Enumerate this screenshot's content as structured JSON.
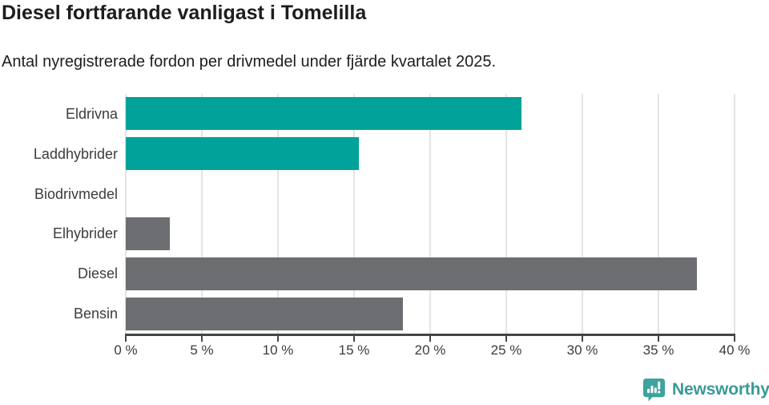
{
  "header": {
    "title": "Diesel fortfarande vanligast i Tomelilla",
    "subtitle": "Antal nyregistrerade fordon per drivmedel under fjärde kvartalet 2025."
  },
  "chart_data": {
    "type": "bar",
    "orientation": "horizontal",
    "title": "Diesel fortfarande vanligast i Tomelilla",
    "subtitle": "Antal nyregistrerade fordon per drivmedel under fjärde kvartalet 2025.",
    "categories": [
      "Eldrivna",
      "Laddhybrider",
      "Biodrivmedel",
      "Elhybrider",
      "Diesel",
      "Bensin"
    ],
    "values": [
      26,
      15.3,
      0,
      2.9,
      37.5,
      18.2
    ],
    "unit": "%",
    "bar_colors": [
      "#00a29a",
      "#00a29a",
      "#6d6e72",
      "#6d6e72",
      "#6d6e72",
      "#6d6e72"
    ],
    "xlim": [
      0,
      40
    ],
    "x_ticks": [
      0,
      5,
      10,
      15,
      20,
      25,
      30,
      35,
      40
    ],
    "x_tick_labels": [
      "0 %",
      "5 %",
      "10 %",
      "15 %",
      "20 %",
      "25 %",
      "30 %",
      "35 %",
      "40 %"
    ],
    "grid": "vertical",
    "legend": "none"
  },
  "branding": {
    "logo_text": "Newsworthy",
    "logo_icon": "newsworthy-speech-bubble-bar-chart-icon",
    "brand_color": "#399a97",
    "icon_fill": "#3ea39e"
  },
  "colors": {
    "accent_teal": "#00a29a",
    "neutral_gray": "#6d6e72",
    "axis": "#454545",
    "gridline": "#e4e4e4",
    "text_dark": "#1d1d1b",
    "text_label": "#3c3c3c",
    "background": "#ffffff"
  }
}
